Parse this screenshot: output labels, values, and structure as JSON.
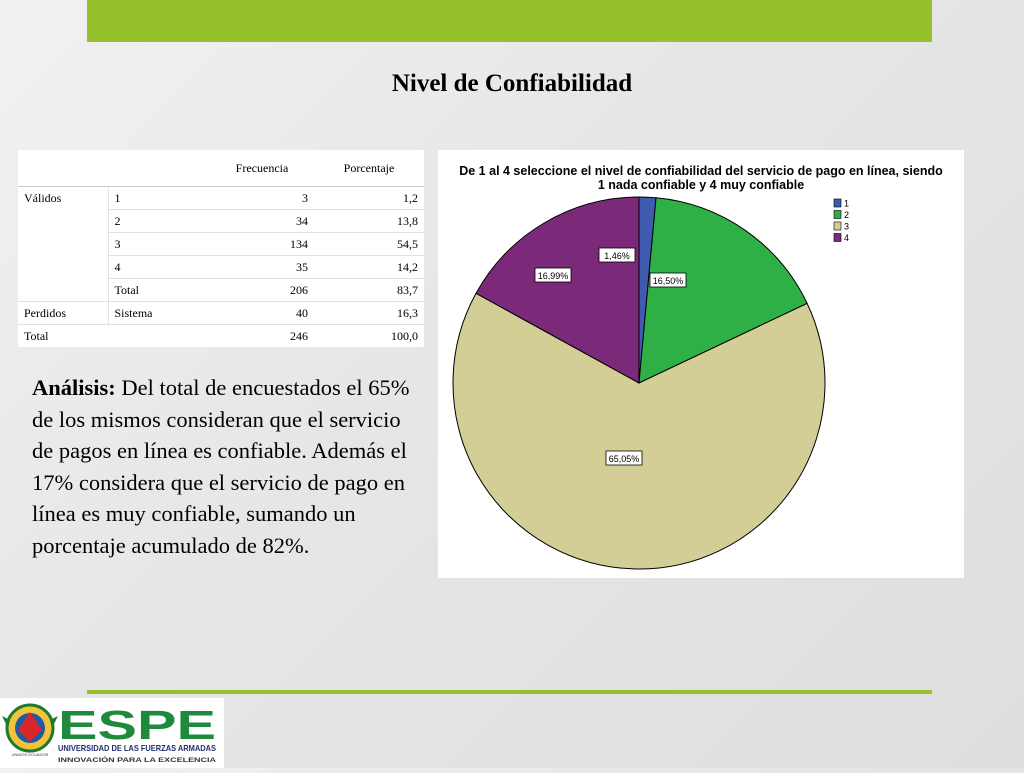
{
  "colors": {
    "accent_green": "#97c12c",
    "slice_1": "#3f5bb0",
    "slice_2": "#2fb046",
    "slice_3": "#d3ce96",
    "slice_4": "#7b2a7a"
  },
  "slide": {
    "title": "Nivel de Confiabilidad"
  },
  "table": {
    "headers": [
      "Frecuencia",
      "Porcentaje"
    ],
    "rows": [
      {
        "group": "Válidos",
        "label": "1",
        "freq": "3",
        "pct": "1,2"
      },
      {
        "group": "",
        "label": "2",
        "freq": "34",
        "pct": "13,8"
      },
      {
        "group": "",
        "label": "3",
        "freq": "134",
        "pct": "54,5"
      },
      {
        "group": "",
        "label": "4",
        "freq": "35",
        "pct": "14,2"
      },
      {
        "group": "",
        "label": "Total",
        "freq": "206",
        "pct": "83,7"
      },
      {
        "group": "Perdidos",
        "label": "Sistema",
        "freq": "40",
        "pct": "16,3"
      },
      {
        "group": "Total",
        "label": "",
        "freq": "246",
        "pct": "100,0"
      }
    ]
  },
  "analysis": {
    "bold": "Análisis:",
    "text": "Del total de encuestados el 65% de los mismos consideran que el servicio de pagos en línea es confiable. Además el 17% considera que el servicio de pago en línea es muy confiable, sumando un porcentaje acumulado de 82%."
  },
  "chart_data": {
    "type": "pie",
    "title": "De 1 al 4 seleccione el nivel de confiabilidad del servicio de pago en línea, siendo 1 nada confiable y 4 muy confiable",
    "categories": [
      "1",
      "2",
      "3",
      "4"
    ],
    "values": [
      1.46,
      16.5,
      65.05,
      16.99
    ],
    "labels": [
      "1,46%",
      "16,50%",
      "65,05%",
      "16,99%"
    ],
    "legend": "top-right"
  },
  "logo": {
    "name": "ESPE",
    "subtitle": "UNIVERSIDAD DE LAS FUERZAS ARMADAS",
    "tagline": "INNOVACIÓN PARA LA EXCELENCIA",
    "seal_text": "UNIDOS ECUADOR"
  }
}
